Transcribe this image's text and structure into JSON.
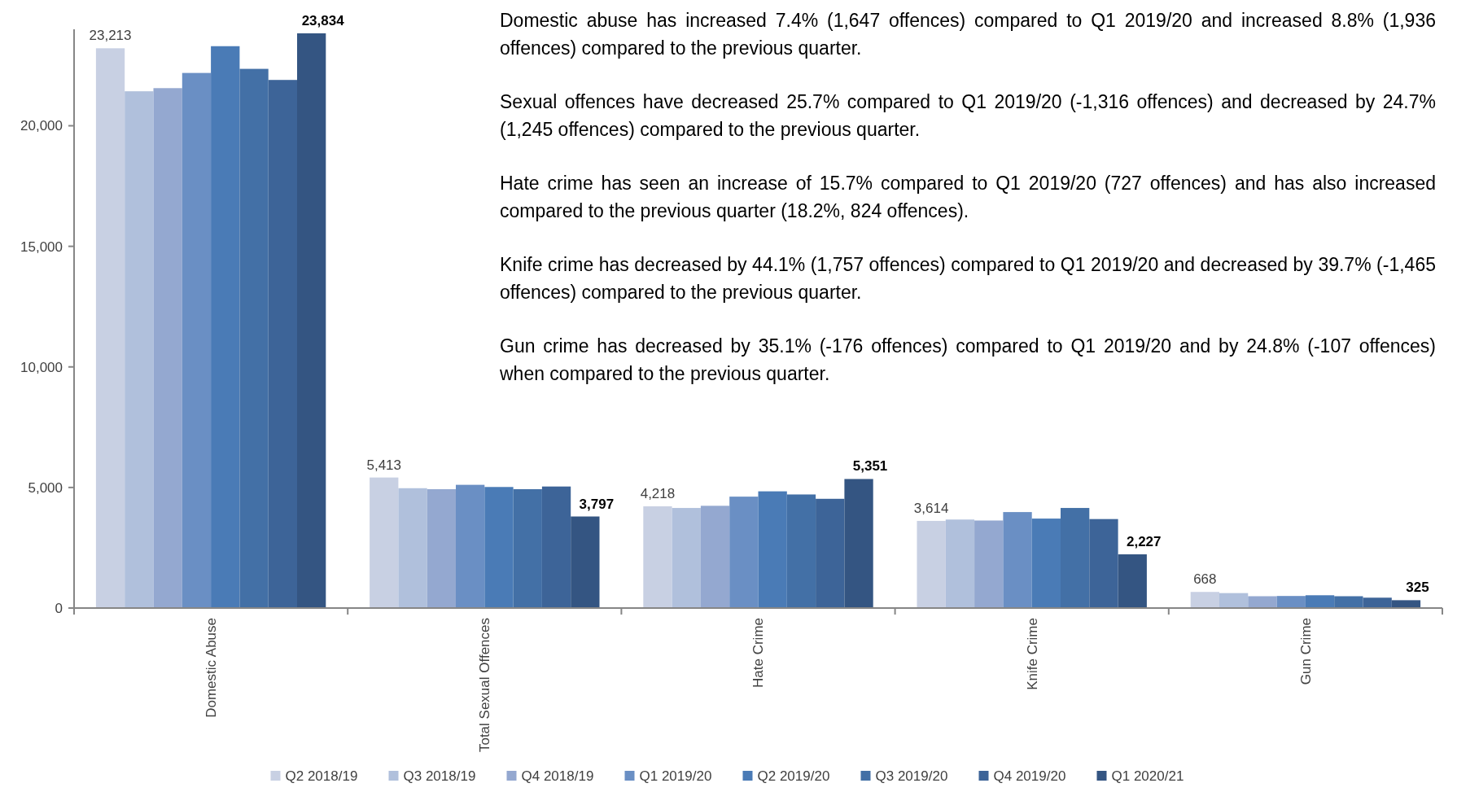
{
  "chart_data": {
    "type": "bar",
    "categories": [
      "Domestic Abuse",
      "Total Sexual Offences",
      "Hate Crime",
      "Knife Crime",
      "Gun Crime"
    ],
    "ylim": [
      0,
      24000
    ],
    "yticks": [
      0,
      {
        "value": 5000,
        "label": "5,000"
      },
      {
        "value": 10000,
        "label": "10,000"
      },
      {
        "value": 15000,
        "label": "15,000"
      },
      {
        "value": 20000,
        "label": "20,000"
      }
    ],
    "grid": false,
    "legend": "bottom",
    "series": [
      {
        "name": "Q2 2018/19",
        "color": "#c8d0e3",
        "values": [
          23213,
          5413,
          4218,
          3614,
          668
        ],
        "value_labels": [
          "23,213",
          "5,413",
          "4,218",
          "3,614",
          "668"
        ]
      },
      {
        "name": "Q3 2018/19",
        "color": "#b0c0dc",
        "values": [
          21430,
          4970,
          4150,
          3670,
          620
        ]
      },
      {
        "name": "Q4 2018/19",
        "color": "#94a8d0",
        "values": [
          21560,
          4930,
          4240,
          3630,
          490
        ]
      },
      {
        "name": "Q1 2019/20",
        "color": "#6a8fc4",
        "values": [
          22190,
          5110,
          4620,
          3980,
          500
        ]
      },
      {
        "name": "Q2 2019/20",
        "color": "#4a7bb6",
        "values": [
          23300,
          5020,
          4840,
          3710,
          530
        ]
      },
      {
        "name": "Q3 2019/20",
        "color": "#4370a6",
        "values": [
          22360,
          4930,
          4710,
          4150,
          490
        ]
      },
      {
        "name": "Q4 2019/20",
        "color": "#3d6498",
        "values": [
          21900,
          5040,
          4530,
          3690,
          430
        ]
      },
      {
        "name": "Q1 2020/21",
        "color": "#345582",
        "values": [
          23834,
          3797,
          5351,
          2227,
          325
        ],
        "value_labels": [
          "23,834",
          "3,797",
          "5,351",
          "2,227",
          "325"
        ]
      }
    ],
    "annotations": [
      "Domestic abuse has increased 7.4% (1,647 offences) compared to Q1 2019/20 and increased 8.8% (1,936 offences) compared to the previous quarter.",
      "Sexual offences have decreased 25.7% compared to Q1 2019/20 (-1,316 offences) and decreased by 24.7% (1,245 offences) compared to the previous quarter.",
      "Hate crime has seen an increase of 15.7% compared to Q1 2019/20 (727 offences) and has also increased compared to the previous quarter (18.2%, 824 offences).",
      "Knife crime has decreased by 44.1% (1,757 offences) compared to Q1 2019/20 and decreased by 39.7% (-1,465 offences) compared to the previous quarter.",
      "Gun crime has decreased by 35.1% (-176 offences) compared to Q1 2019/20 and by 24.8% (-107 offences) when compared to the previous quarter."
    ]
  }
}
